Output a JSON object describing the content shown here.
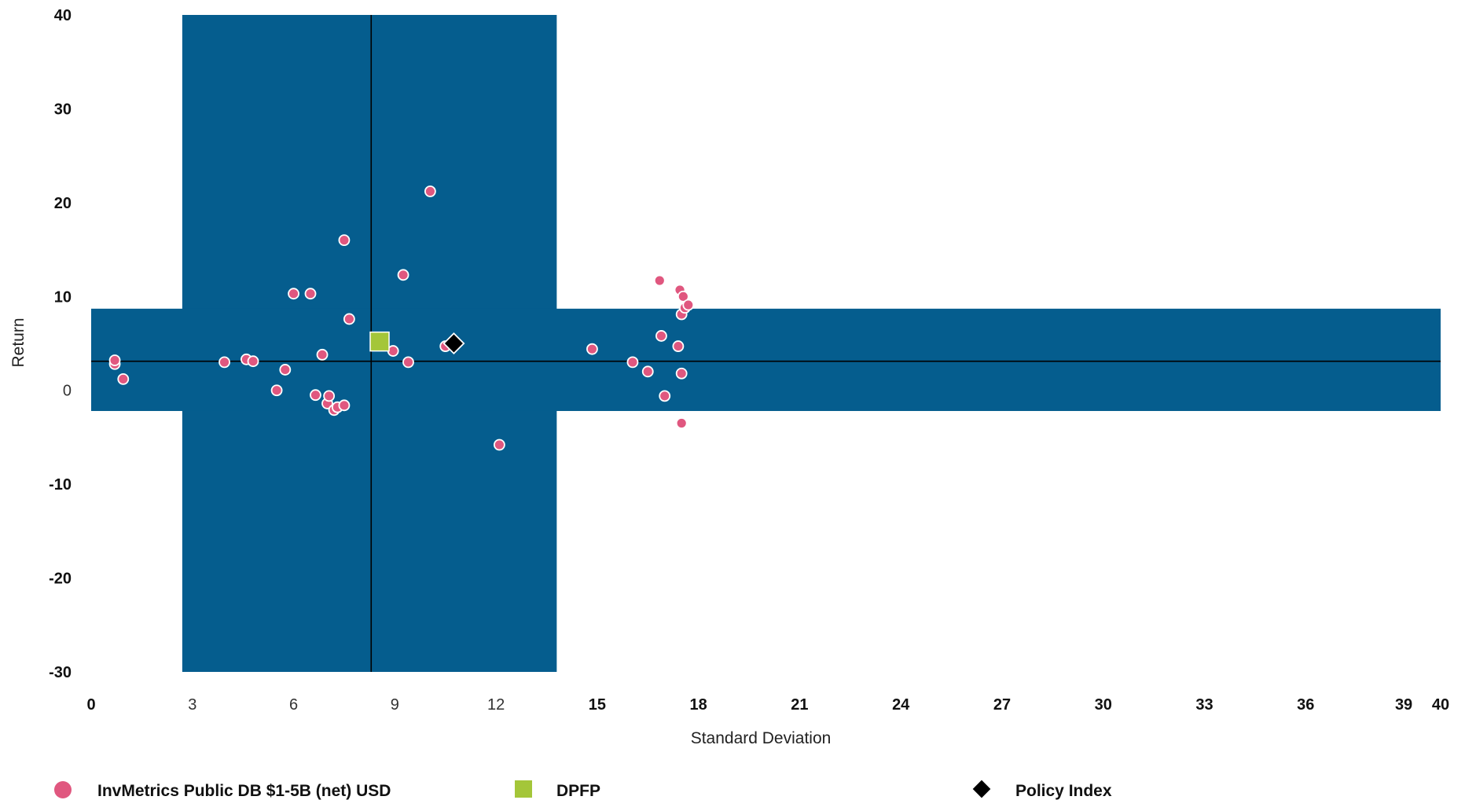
{
  "chart_data": {
    "type": "scatter",
    "xlabel": "Standard Deviation",
    "ylabel": "Return",
    "xlim": [
      0,
      40
    ],
    "ylim": [
      -30,
      40
    ],
    "x_ticks": [
      {
        "value": 0,
        "label": "0",
        "bold": true
      },
      {
        "value": 3,
        "label": "3",
        "bold": false
      },
      {
        "value": 6,
        "label": "6",
        "bold": false
      },
      {
        "value": 9,
        "label": "9",
        "bold": false
      },
      {
        "value": 12,
        "label": "12",
        "bold": false
      },
      {
        "value": 15,
        "label": "15",
        "bold": true
      },
      {
        "value": 18,
        "label": "18",
        "bold": true
      },
      {
        "value": 21,
        "label": "21",
        "bold": true
      },
      {
        "value": 24,
        "label": "24",
        "bold": true
      },
      {
        "value": 27,
        "label": "27",
        "bold": true
      },
      {
        "value": 30,
        "label": "30",
        "bold": true
      },
      {
        "value": 33,
        "label": "33",
        "bold": true
      },
      {
        "value": 36,
        "label": "36",
        "bold": true
      },
      {
        "value": 39,
        "label": "39",
        "bold": true
      },
      {
        "value": 40,
        "label": "40",
        "bold": true
      }
    ],
    "y_ticks": [
      {
        "value": 40,
        "label": "40",
        "bold": true
      },
      {
        "value": 30,
        "label": "30",
        "bold": true
      },
      {
        "value": 20,
        "label": "20",
        "bold": true
      },
      {
        "value": 10,
        "label": "10",
        "bold": true
      },
      {
        "value": 0,
        "label": "0",
        "bold": false
      },
      {
        "value": -10,
        "label": "-10",
        "bold": true
      },
      {
        "value": -20,
        "label": "-20",
        "bold": true
      },
      {
        "value": -30,
        "label": "-30",
        "bold": true
      }
    ],
    "shaded_bands": {
      "color": "#055d8e",
      "vertical_band_x": [
        2.7,
        13.8
      ],
      "horizontal_band_y": [
        -2.2,
        8.7
      ]
    },
    "reference_lines": {
      "median_x": 8.3,
      "median_y": 3.1
    },
    "series": [
      {
        "name": "InvMetrics Public DB $1-5B (net) USD",
        "marker": "circle",
        "color": "#e0577f",
        "points": [
          [
            0.7,
            2.8
          ],
          [
            0.7,
            3.2
          ],
          [
            0.95,
            1.2
          ],
          [
            3.95,
            3.0
          ],
          [
            4.6,
            3.3
          ],
          [
            4.8,
            3.1
          ],
          [
            5.75,
            2.2
          ],
          [
            5.5,
            0.0
          ],
          [
            6.0,
            10.3
          ],
          [
            6.5,
            10.3
          ],
          [
            6.65,
            -0.5
          ],
          [
            7.0,
            -1.4
          ],
          [
            7.05,
            -0.6
          ],
          [
            7.2,
            -2.1
          ],
          [
            7.3,
            -1.8
          ],
          [
            7.5,
            -1.6
          ],
          [
            6.85,
            3.8
          ],
          [
            7.5,
            16.0
          ],
          [
            7.65,
            7.6
          ],
          [
            8.95,
            4.2
          ],
          [
            9.25,
            12.3
          ],
          [
            9.4,
            3.0
          ],
          [
            10.05,
            21.2
          ],
          [
            10.5,
            4.7
          ],
          [
            12.1,
            -5.8
          ],
          [
            14.85,
            4.4
          ],
          [
            16.05,
            3.0
          ],
          [
            16.5,
            2.0
          ],
          [
            16.85,
            11.7
          ],
          [
            16.9,
            5.8
          ],
          [
            17.0,
            -0.6
          ],
          [
            17.4,
            4.7
          ],
          [
            17.45,
            10.7
          ],
          [
            17.5,
            8.1
          ],
          [
            17.5,
            1.8
          ],
          [
            17.5,
            -3.5
          ],
          [
            17.55,
            10.0
          ],
          [
            17.6,
            8.8
          ],
          [
            17.7,
            9.1
          ]
        ]
      },
      {
        "name": "DPFP",
        "marker": "square",
        "color": "#a4c639",
        "points": [
          [
            8.55,
            5.2
          ]
        ]
      },
      {
        "name": "Policy Index",
        "marker": "diamond",
        "color": "#000000",
        "points": [
          [
            10.75,
            5.0
          ]
        ]
      }
    ],
    "legend": {
      "placement": "bottom"
    }
  }
}
